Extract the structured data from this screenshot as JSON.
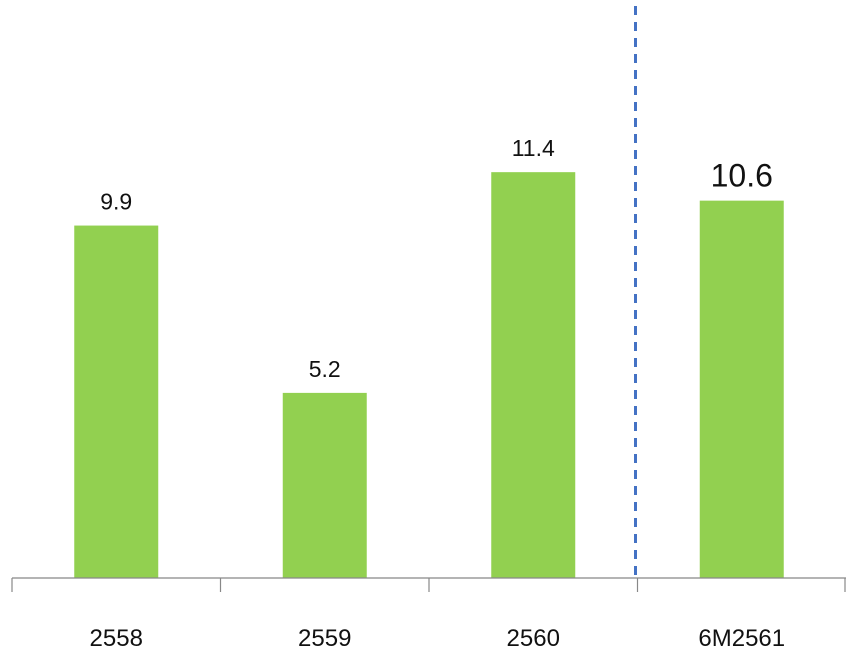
{
  "chart_data": {
    "type": "bar",
    "categories": [
      "2558",
      "2559",
      "2560",
      "6M2561"
    ],
    "values": [
      9.9,
      5.2,
      11.4,
      10.6
    ],
    "value_labels": [
      "9.9",
      "5.2",
      "11.4",
      "10.6"
    ],
    "bar_color": "#92d050",
    "axis_color": "#888888",
    "divider_color": "#4472c4",
    "divider_style": "dashed",
    "divider_after_category": "2560",
    "ylim": [
      0,
      16
    ],
    "grid": false,
    "legend": "none",
    "title": "",
    "xlabel": "",
    "ylabel": ""
  }
}
